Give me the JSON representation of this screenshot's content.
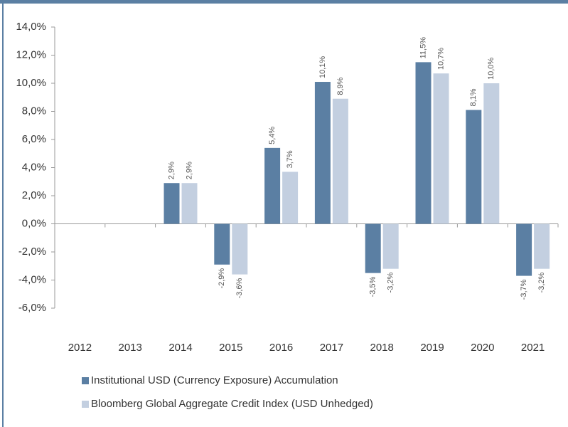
{
  "chart_data": {
    "type": "bar",
    "categories": [
      "2012",
      "2013",
      "2014",
      "2015",
      "2016",
      "2017",
      "2018",
      "2019",
      "2020",
      "2021"
    ],
    "series": [
      {
        "name": "Institutional USD (Currency Exposure) Accumulation",
        "color": "#5b7fa3",
        "values": [
          null,
          null,
          2.9,
          -2.9,
          5.4,
          10.1,
          -3.5,
          11.5,
          8.1,
          -3.7
        ],
        "value_labels": [
          null,
          null,
          "2,9%",
          "-2,9%",
          "5,4%",
          "10,1%",
          "-3,5%",
          "11,5%",
          "8,1%",
          "-3,7%"
        ]
      },
      {
        "name": "Bloomberg Global Aggregate Credit Index (USD Unhedged)",
        "color": "#c3cfe0",
        "values": [
          null,
          null,
          2.9,
          -3.6,
          3.7,
          8.9,
          -3.2,
          10.7,
          10.0,
          -3.2
        ],
        "value_labels": [
          null,
          null,
          "2,9%",
          "-3,6%",
          "3,7%",
          "8,9%",
          "-3,2%",
          "10,7%",
          "10,0%",
          "-3,2%"
        ]
      }
    ],
    "ylim": [
      -6,
      14
    ],
    "yticks": [
      {
        "value": -6,
        "label": "-6,0%"
      },
      {
        "value": -4,
        "label": "-4,0%"
      },
      {
        "value": -2,
        "label": "-2,0%"
      },
      {
        "value": 0,
        "label": "0,0%"
      },
      {
        "value": 2,
        "label": "2,0%"
      },
      {
        "value": 4,
        "label": "4,0%"
      },
      {
        "value": 6,
        "label": "6,0%"
      },
      {
        "value": 8,
        "label": "8,0%"
      },
      {
        "value": 10,
        "label": "10,0%"
      },
      {
        "value": 12,
        "label": "12,0%"
      },
      {
        "value": 14,
        "label": "14,0%"
      }
    ],
    "grid": false
  }
}
